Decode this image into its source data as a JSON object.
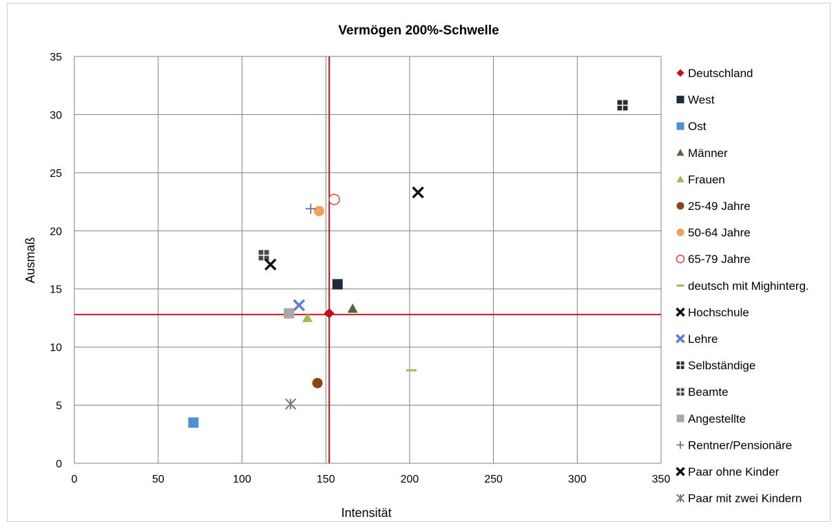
{
  "chart_data": {
    "type": "scatter",
    "title": "Vermögen 200%-Schwelle",
    "xlabel": "Intensität",
    "ylabel": "Ausmaß",
    "xlim": [
      0,
      350
    ],
    "ylim": [
      0,
      35
    ],
    "xticks": [
      0,
      50,
      100,
      150,
      200,
      250,
      300,
      350
    ],
    "yticks": [
      0,
      5,
      10,
      15,
      20,
      25,
      30,
      35
    ],
    "grid": true,
    "legend_position": "right",
    "reference_lines": {
      "x": 152,
      "y": 12.8,
      "color": "#e0101a"
    },
    "series": [
      {
        "name": "Deutschland",
        "marker": "diamond",
        "color": "#c0101a",
        "x": 152,
        "y": 12.9
      },
      {
        "name": "West",
        "marker": "square",
        "color": "#1f2b3a",
        "x": 157,
        "y": 15.4
      },
      {
        "name": "Ost",
        "marker": "square",
        "color": "#4f8fd8",
        "x": 71,
        "y": 3.5
      },
      {
        "name": "Männer",
        "marker": "triangle",
        "color": "#4f6a3a",
        "x": 166,
        "y": 13.3
      },
      {
        "name": "Frauen",
        "marker": "triangle",
        "color": "#9bbb59",
        "x": 139,
        "y": 12.5
      },
      {
        "name": "25-49 Jahre",
        "marker": "circle",
        "color": "#8b4513",
        "x": 145,
        "y": 6.9
      },
      {
        "name": "50-64 Jahre",
        "marker": "circle",
        "color": "#f0a05a",
        "x": 146,
        "y": 21.7
      },
      {
        "name": "65-79 Jahre",
        "marker": "open-circle",
        "color": "#e0403a",
        "x": 155,
        "y": 22.7
      },
      {
        "name": "deutsch mit Mighinterg.",
        "marker": "dash",
        "color": "#9bbb59",
        "x": 201,
        "y": 8.0
      },
      {
        "name": "Hochschule",
        "marker": "x",
        "color": "#111111",
        "x": 205,
        "y": 23.3
      },
      {
        "name": "Lehre",
        "marker": "x",
        "color": "#5a7fd0",
        "x": 134,
        "y": 13.6
      },
      {
        "name": "Selbständige",
        "marker": "grid-square",
        "color": "#2a2a2a",
        "x": 327,
        "y": 30.8
      },
      {
        "name": "Beamte",
        "marker": "grid-square",
        "color": "#4a4a55",
        "x": 113,
        "y": 17.9
      },
      {
        "name": "Angestellte",
        "marker": "square",
        "color": "#a8a8a8",
        "x": 128,
        "y": 12.9
      },
      {
        "name": "Rentner/Pensionäre",
        "marker": "plus",
        "color": "#7070a0",
        "x": 141,
        "y": 21.9
      },
      {
        "name": "Paar ohne Kinder",
        "marker": "x",
        "color": "#111111",
        "x": 117,
        "y": 17.1
      },
      {
        "name": "Paar mit zwei Kindern",
        "marker": "star",
        "color": "#777777",
        "x": 129,
        "y": 5.1
      }
    ]
  }
}
